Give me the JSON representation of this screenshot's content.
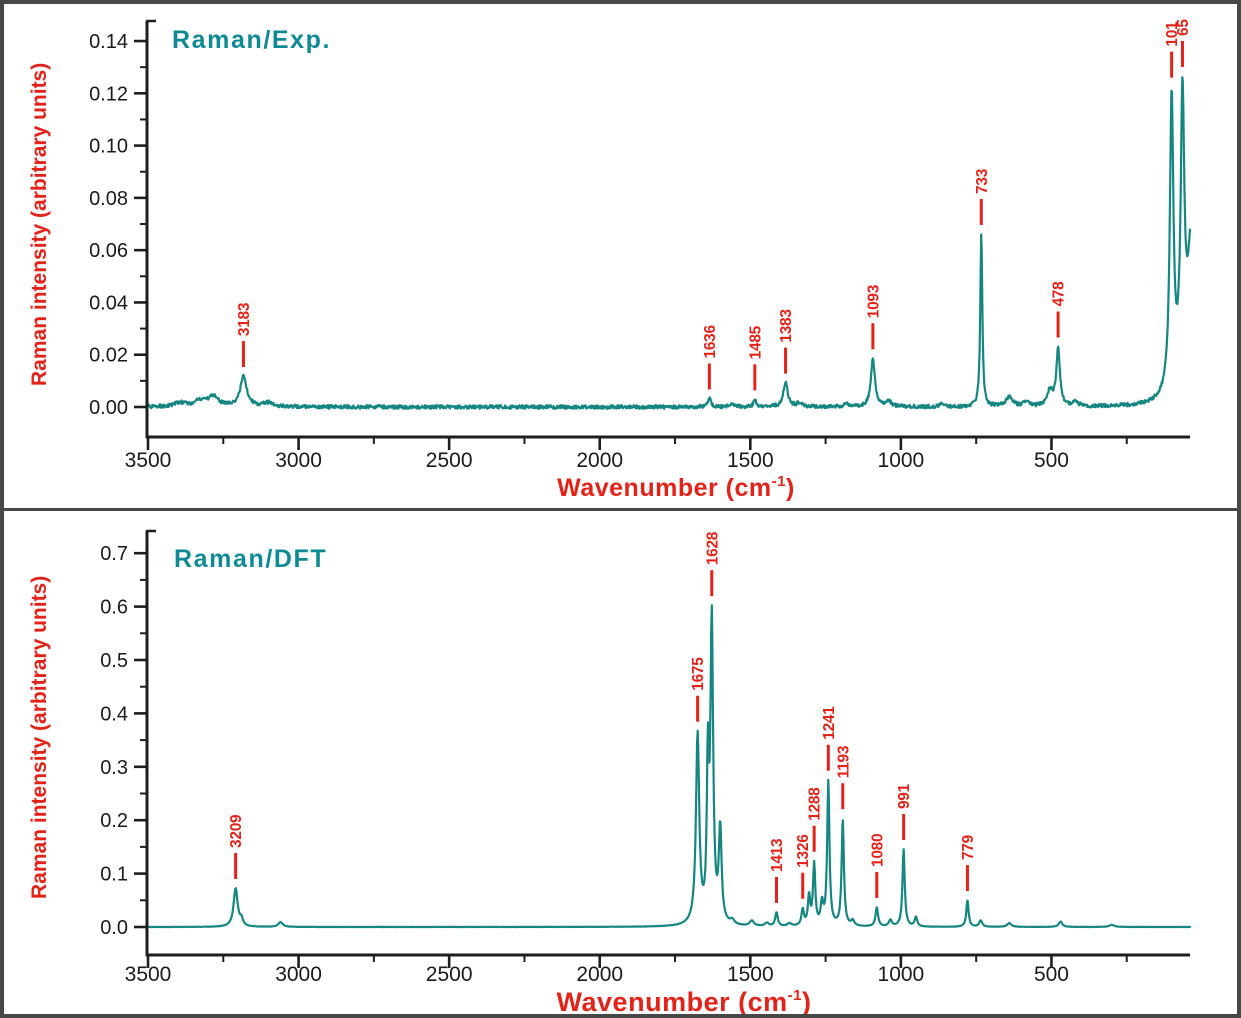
{
  "figure": {
    "description": "Two stacked Raman spectra panels, experimental (top) and DFT-calculated (bottom)",
    "panel_count": 2
  },
  "colors": {
    "spectrum_line": "#168681",
    "annotation_red": "#e2231a",
    "title_teal": "#0f8a94",
    "tick_text": "#1a1a1a",
    "axis": "#1e1e1e",
    "frame": "#474747",
    "panel_bg": "#ffffff"
  },
  "chart_data": [
    {
      "type": "line",
      "title": "Raman/Exp.",
      "ylabel": "Raman intensity (arbitrary units)",
      "xlabel": {
        "pre": "Wavenumber (cm",
        "sup": "-1",
        "post": ")"
      },
      "x_axis_reversed": true,
      "x_range": [
        3500,
        40
      ],
      "y_range": [
        0,
        0.14
      ],
      "x_ticks": [
        {
          "v": 3500,
          "label": "3500"
        },
        {
          "v": 3000,
          "label": "3000"
        },
        {
          "v": 2500,
          "label": "2500"
        },
        {
          "v": 2000,
          "label": "2000"
        },
        {
          "v": 1500,
          "label": "1500"
        },
        {
          "v": 1000,
          "label": "1000"
        },
        {
          "v": 500,
          "label": "500"
        }
      ],
      "x_minor_step": 250,
      "y_ticks": [
        {
          "v": 0.14,
          "label": "0.14"
        },
        {
          "v": 0.12,
          "label": "0.12"
        },
        {
          "v": 0.1,
          "label": "0.10"
        },
        {
          "v": 0.08,
          "label": "0.08"
        },
        {
          "v": 0.06,
          "label": "0.06"
        },
        {
          "v": 0.04,
          "label": "0.04"
        },
        {
          "v": 0.02,
          "label": "0.02"
        },
        {
          "v": 0.0,
          "label": "0.00"
        }
      ],
      "y_minor_step": 0.01,
      "labeled_peaks": [
        {
          "label": "3183",
          "wavenumber": 3183,
          "intensity": 0.012
        },
        {
          "label": "1636",
          "wavenumber": 1636,
          "intensity": 0.003
        },
        {
          "label": "1485",
          "wavenumber": 1485,
          "intensity": 0.003
        },
        {
          "label": "1383",
          "wavenumber": 1383,
          "intensity": 0.009
        },
        {
          "label": "1093",
          "wavenumber": 1093,
          "intensity": 0.019
        },
        {
          "label": "733",
          "wavenumber": 733,
          "intensity": 0.067
        },
        {
          "label": "478",
          "wavenumber": 478,
          "intensity": 0.024
        },
        {
          "label": "101",
          "wavenumber": 101,
          "intensity": 0.125
        },
        {
          "label": "65",
          "wavenumber": 65,
          "intensity": 0.125
        }
      ],
      "profile_peaks": [
        [
          3395,
          0.0015,
          25
        ],
        [
          3330,
          0.002,
          18
        ],
        [
          3285,
          0.004,
          22
        ],
        [
          3183,
          0.0115,
          13
        ],
        [
          3100,
          0.0015,
          20
        ],
        [
          1636,
          0.0032,
          6
        ],
        [
          1560,
          0.0012,
          10
        ],
        [
          1485,
          0.0028,
          5
        ],
        [
          1383,
          0.0092,
          9
        ],
        [
          1335,
          0.0018,
          10
        ],
        [
          1180,
          0.0013,
          8
        ],
        [
          1093,
          0.0185,
          8
        ],
        [
          1040,
          0.0018,
          12
        ],
        [
          860,
          0.0012,
          10
        ],
        [
          733,
          0.066,
          4
        ],
        [
          640,
          0.0035,
          14
        ],
        [
          585,
          0.002,
          10
        ],
        [
          505,
          0.006,
          11
        ],
        [
          478,
          0.022,
          7
        ],
        [
          420,
          0.0018,
          10
        ],
        [
          101,
          0.112,
          7
        ],
        [
          65,
          0.102,
          7
        ],
        [
          30,
          0.055,
          18
        ]
      ],
      "background": {
        "amp": 0.05,
        "decay": 38
      },
      "noise_amp": 0.0007
    },
    {
      "type": "line",
      "title": "Raman/DFT",
      "ylabel": "Raman intensity (arbitrary units)",
      "xlabel": {
        "pre": "Wavenumber (cm",
        "sup": "-1",
        "post": ")"
      },
      "x_axis_reversed": true,
      "x_range": [
        3500,
        40
      ],
      "y_range": [
        0,
        0.7
      ],
      "x_ticks": [
        {
          "v": 3500,
          "label": "3500"
        },
        {
          "v": 3000,
          "label": "3000"
        },
        {
          "v": 2500,
          "label": "2500"
        },
        {
          "v": 2000,
          "label": "2000"
        },
        {
          "v": 1500,
          "label": "1500"
        },
        {
          "v": 1000,
          "label": "1000"
        },
        {
          "v": 500,
          "label": "500"
        }
      ],
      "x_minor_step": 250,
      "y_ticks": [
        {
          "v": 0.7,
          "label": "0.7"
        },
        {
          "v": 0.6,
          "label": "0.6"
        },
        {
          "v": 0.5,
          "label": "0.5"
        },
        {
          "v": 0.4,
          "label": "0.4"
        },
        {
          "v": 0.3,
          "label": "0.3"
        },
        {
          "v": 0.2,
          "label": "0.2"
        },
        {
          "v": 0.1,
          "label": "0.1"
        },
        {
          "v": 0.0,
          "label": "0.0"
        }
      ],
      "y_minor_step": 0.05,
      "labeled_peaks": [
        {
          "label": "3209",
          "wavenumber": 3209,
          "intensity": 0.075
        },
        {
          "label": "1675",
          "wavenumber": 1675,
          "intensity": 0.36
        },
        {
          "label": "1628",
          "wavenumber": 1628,
          "intensity": 0.59
        },
        {
          "label": "1413",
          "wavenumber": 1413,
          "intensity": 0.028
        },
        {
          "label": "1326",
          "wavenumber": 1326,
          "intensity": 0.032
        },
        {
          "label": "1288",
          "wavenumber": 1288,
          "intensity": 0.124
        },
        {
          "label": "1241",
          "wavenumber": 1241,
          "intensity": 0.277
        },
        {
          "label": "1193",
          "wavenumber": 1193,
          "intensity": 0.207
        },
        {
          "label": "1080",
          "wavenumber": 1080,
          "intensity": 0.038
        },
        {
          "label": "991",
          "wavenumber": 991,
          "intensity": 0.148
        },
        {
          "label": "779",
          "wavenumber": 779,
          "intensity": 0.052
        }
      ],
      "profile_peaks": [
        [
          3209,
          0.072,
          8
        ],
        [
          3190,
          0.012,
          6
        ],
        [
          3060,
          0.009,
          9
        ],
        [
          1675,
          0.355,
          6.5
        ],
        [
          1641,
          0.28,
          4
        ],
        [
          1628,
          0.565,
          5.5
        ],
        [
          1600,
          0.175,
          5.5
        ],
        [
          1560,
          0.008,
          8
        ],
        [
          1495,
          0.01,
          8
        ],
        [
          1445,
          0.006,
          8
        ],
        [
          1413,
          0.026,
          5
        ],
        [
          1370,
          0.005,
          8
        ],
        [
          1326,
          0.03,
          5
        ],
        [
          1305,
          0.055,
          4.5
        ],
        [
          1288,
          0.115,
          4.5
        ],
        [
          1262,
          0.04,
          5
        ],
        [
          1241,
          0.27,
          4.5
        ],
        [
          1193,
          0.2,
          4.5
        ],
        [
          1160,
          0.01,
          6
        ],
        [
          1080,
          0.036,
          5
        ],
        [
          1035,
          0.012,
          6
        ],
        [
          991,
          0.145,
          4.5
        ],
        [
          950,
          0.018,
          5
        ],
        [
          779,
          0.05,
          4.5
        ],
        [
          735,
          0.012,
          6
        ],
        [
          640,
          0.007,
          8
        ],
        [
          470,
          0.01,
          7
        ],
        [
          300,
          0.004,
          10
        ]
      ],
      "background": null,
      "noise_amp": 0.0002
    }
  ]
}
